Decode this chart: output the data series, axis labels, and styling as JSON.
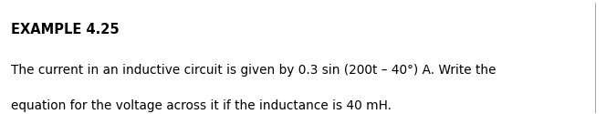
{
  "title": "EXAMPLE 4.25",
  "line1": "The current in an inductive circuit is given by 0.3 sin (200t – 40°) A. Write the",
  "line2": "equation for the voltage across it if the inductance is 40 mH.",
  "background_color": "#ffffff",
  "title_color": "#000000",
  "text_color": "#000000",
  "title_fontsize": 10.5,
  "body_fontsize": 9.8,
  "border_color": "#aaaaaa"
}
